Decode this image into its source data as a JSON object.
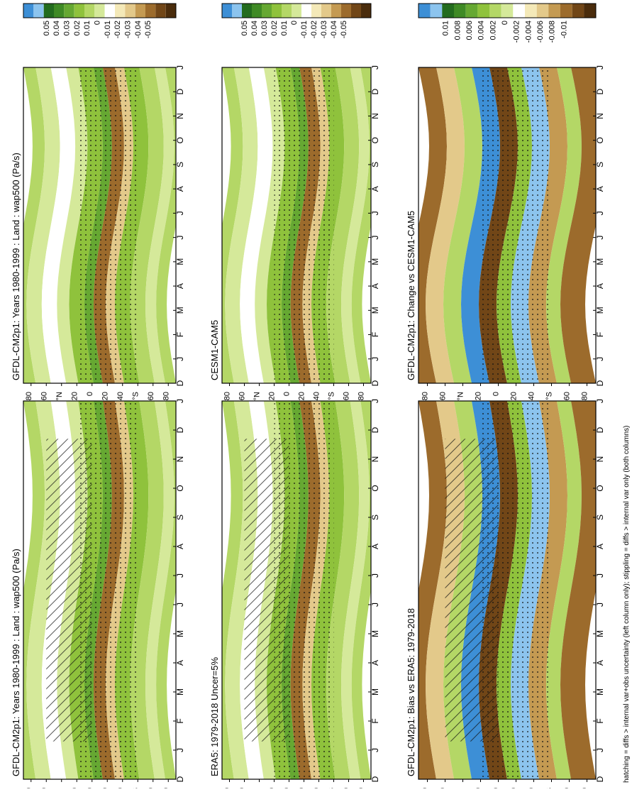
{
  "figure": {
    "footer": "hatching = diffs > internal var+obs uncertainty (left column only); stippling = diffs > internal var only (both columns)"
  },
  "chart_data": [
    {
      "type": "heatmap",
      "title": "GFDL-CM2p1: Years 1980-1999 : Land : wap500 (Pa/s)",
      "x": [
        "D",
        "J",
        "F",
        "M",
        "A",
        "M",
        "J",
        "J",
        "A",
        "S",
        "O",
        "N",
        "D",
        "J"
      ],
      "y_ticks": [
        "80",
        "60",
        "°N",
        "20",
        "0",
        "20",
        "40",
        "°S",
        "60",
        "80"
      ],
      "colorbar": [
        "0.05",
        "0.04",
        "0.03",
        "0.02",
        "0.01",
        "0",
        "-0.01",
        "-0.02",
        "-0.03",
        "-0.04",
        "-0.05"
      ],
      "hatching": true,
      "stippling": true,
      "palette": "main"
    },
    {
      "type": "heatmap",
      "title": "GFDL-CM2p1: Years 1980-1999 : Land : wap500 (Pa/s)",
      "x": [
        "D",
        "J",
        "F",
        "M",
        "A",
        "M",
        "J",
        "J",
        "A",
        "S",
        "O",
        "N",
        "D",
        "J"
      ],
      "y_ticks": [
        "80",
        "60",
        "°N",
        "20",
        "0",
        "20",
        "40",
        "°S",
        "60",
        "80"
      ],
      "colorbar": [
        "0.05",
        "0.04",
        "0.03",
        "0.02",
        "0.01",
        "0",
        "-0.01",
        "-0.02",
        "-0.03",
        "-0.04",
        "-0.05"
      ],
      "hatching": false,
      "stippling": true,
      "palette": "main"
    },
    {
      "type": "heatmap",
      "title": "ERA5: 1979-2018 Uncer=5%",
      "x": [
        "D",
        "J",
        "F",
        "M",
        "A",
        "M",
        "J",
        "J",
        "A",
        "S",
        "O",
        "N",
        "D",
        "J"
      ],
      "y_ticks": [
        "80",
        "60",
        "°N",
        "20",
        "0",
        "20",
        "40",
        "°S",
        "60",
        "80"
      ],
      "colorbar": [
        "0.05",
        "0.04",
        "0.03",
        "0.02",
        "0.01",
        "0",
        "-0.01",
        "-0.02",
        "-0.03",
        "-0.04",
        "-0.05"
      ],
      "hatching": true,
      "stippling": true,
      "palette": "main"
    },
    {
      "type": "heatmap",
      "title": "CESM1-CAM5",
      "x": [
        "D",
        "J",
        "F",
        "M",
        "A",
        "M",
        "J",
        "J",
        "A",
        "S",
        "O",
        "N",
        "D",
        "J"
      ],
      "y_ticks": [
        "80",
        "60",
        "°N",
        "20",
        "0",
        "20",
        "40",
        "°S",
        "60",
        "80"
      ],
      "colorbar": [
        "0.05",
        "0.04",
        "0.03",
        "0.02",
        "0.01",
        "0",
        "-0.01",
        "-0.02",
        "-0.03",
        "-0.04",
        "-0.05"
      ],
      "hatching": false,
      "stippling": true,
      "palette": "main"
    },
    {
      "type": "heatmap",
      "title": "GFDL-CM2p1: Bias vs ERA5: 1979-2018",
      "x": [
        "D",
        "J",
        "F",
        "M",
        "A",
        "M",
        "J",
        "J",
        "A",
        "S",
        "O",
        "N",
        "D",
        "J"
      ],
      "y_ticks": [
        "80",
        "60",
        "°N",
        "20",
        "0",
        "20",
        "40",
        "°S",
        "60",
        "80"
      ],
      "colorbar": [
        "0.01",
        "0.008",
        "0.006",
        "0.004",
        "0.002",
        "0",
        "-0.002",
        "-0.004",
        "-0.006",
        "-0.008",
        "-0.01"
      ],
      "hatching": true,
      "stippling": true,
      "palette": "diff"
    },
    {
      "type": "heatmap",
      "title": "GFDL-CM2p1: Change vs CESM1-CAM5",
      "x": [
        "D",
        "J",
        "F",
        "M",
        "A",
        "M",
        "J",
        "J",
        "A",
        "S",
        "O",
        "N",
        "D",
        "J"
      ],
      "y_ticks": [
        "80",
        "60",
        "°N",
        "20",
        "0",
        "20",
        "40",
        "°S",
        "60",
        "80"
      ],
      "colorbar": [
        "0.01",
        "0.008",
        "0.006",
        "0.004",
        "0.002",
        "0",
        "-0.002",
        "-0.004",
        "-0.006",
        "-0.008",
        "-0.01"
      ],
      "hatching": false,
      "stippling": true,
      "palette": "diff"
    }
  ],
  "colors": {
    "blue1": "#3d8fd6",
    "blue2": "#8cc4ee",
    "g1": "#236b1e",
    "g2": "#3f8a25",
    "g3": "#66a832",
    "g4": "#8fc23c",
    "g5": "#b4d766",
    "g6": "#d5e99a",
    "white": "#ffffff",
    "t1": "#f4e9b8",
    "t2": "#e3c98a",
    "t3": "#c49a52",
    "t4": "#9c6b2c",
    "t5": "#714617",
    "t6": "#4a2c0c"
  }
}
